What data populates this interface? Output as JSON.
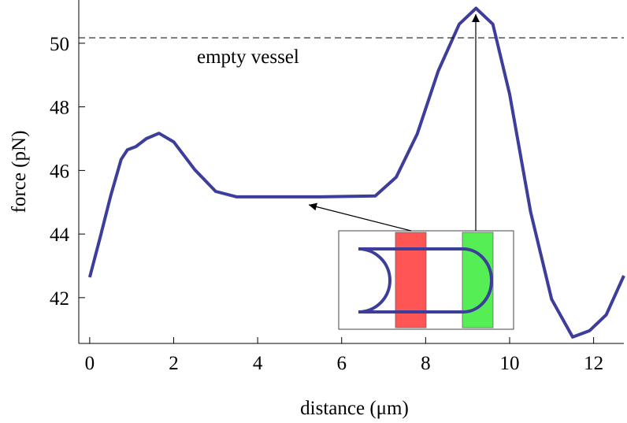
{
  "chart_data": {
    "type": "line",
    "xlabel": "distance (μm)",
    "ylabel": "force (pN)",
    "xlim": [
      -0.26,
      12.72
    ],
    "ylim": [
      40.56,
      51.36
    ],
    "xticks": [
      0,
      2,
      4,
      6,
      8,
      10,
      12
    ],
    "yticks": [
      42,
      44,
      46,
      48,
      50
    ],
    "reference_line": {
      "value": 50.17,
      "label": "empty vessel"
    },
    "series": [
      {
        "color": "#3d3d9b",
        "x": [
          0,
          0.25,
          0.5,
          0.75,
          0.9,
          1.1,
          1.35,
          1.65,
          2.0,
          2.5,
          3.0,
          3.5,
          4.5,
          5.5,
          6.8,
          7.3,
          7.8,
          8.3,
          8.8,
          9.2,
          9.6,
          10.0,
          10.5,
          11.0,
          11.5,
          11.9,
          12.3,
          12.72
        ],
        "values": [
          42.64,
          43.9,
          45.2,
          46.35,
          46.65,
          46.75,
          47.0,
          47.17,
          46.9,
          46.03,
          45.34,
          45.17,
          45.17,
          45.17,
          45.2,
          45.79,
          47.15,
          49.13,
          50.6,
          51.1,
          50.6,
          48.4,
          44.7,
          41.95,
          40.76,
          40.96,
          41.46,
          42.69
        ]
      }
    ]
  }
}
